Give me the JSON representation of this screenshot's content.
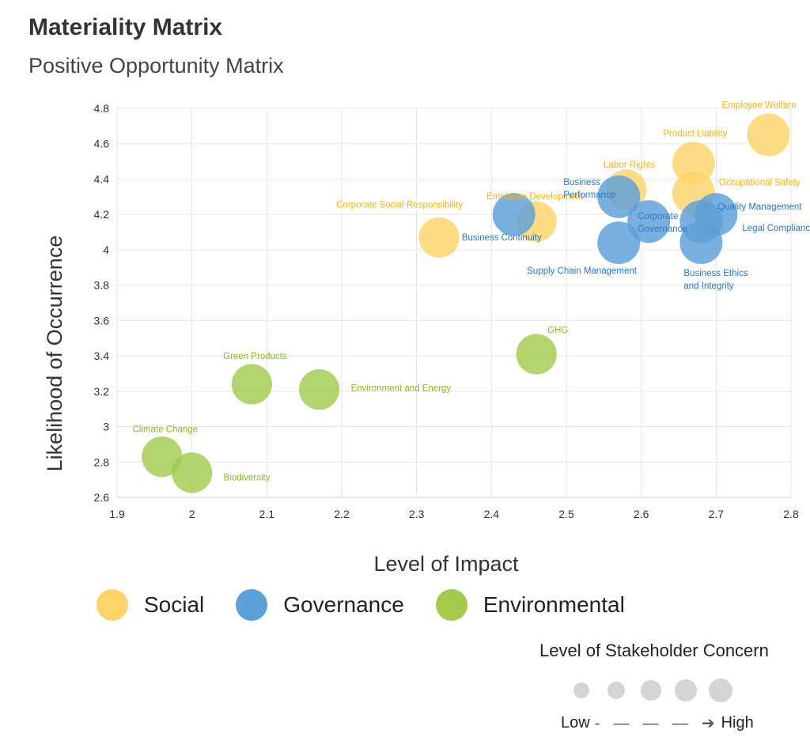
{
  "title": "Materiality Matrix",
  "subtitle": "Positive Opportunity Matrix",
  "chart_data": {
    "type": "scatter",
    "title": "Materiality Matrix",
    "subtitle": "Positive Opportunity Matrix",
    "xlabel": "Level of Impact",
    "ylabel": "Likelihood of Occurrence",
    "xlim": [
      1.9,
      2.8
    ],
    "ylim": [
      2.6,
      4.8
    ],
    "xticks": [
      "1.9",
      "2",
      "2.1",
      "2.2",
      "2.3",
      "2.4",
      "2.5",
      "2.6",
      "2.7",
      "2.8"
    ],
    "yticks": [
      "2.6",
      "2.8",
      "3",
      "3.2",
      "3.4",
      "3.6",
      "3.8",
      "4",
      "4.2",
      "4.4",
      "4.6",
      "4.8"
    ],
    "grid": true,
    "legend_position": "bottom",
    "series": [
      {
        "name": "Social",
        "color": "#fdd46a",
        "text_color": "#f2b517",
        "points": [
          {
            "label": "Employee Welfare",
            "x": 2.77,
            "y": 4.65,
            "concern": 5
          },
          {
            "label": "Product Liability",
            "x": 2.67,
            "y": 4.49,
            "concern": 5
          },
          {
            "label": "Labor Rights",
            "x": 2.58,
            "y": 4.34,
            "concern": 4
          },
          {
            "label": "Occupational Safety",
            "x": 2.67,
            "y": 4.32,
            "concern": 5
          },
          {
            "label": "Employee Development",
            "x": 2.46,
            "y": 4.16,
            "concern": 4
          },
          {
            "label": "Corporate Social Responsibility",
            "x": 2.33,
            "y": 4.07,
            "concern": 4
          }
        ]
      },
      {
        "name": "Governance",
        "color": "#5d9fd8",
        "text_color": "#2a78c2",
        "points": [
          {
            "label": "Business Performance",
            "x": 2.57,
            "y": 4.3,
            "concern": 5
          },
          {
            "label": "Business Continuity",
            "x": 2.43,
            "y": 4.2,
            "concern": 5
          },
          {
            "label": "Corporate Governance",
            "x": 2.61,
            "y": 4.16,
            "concern": 5
          },
          {
            "label": "Quality Management",
            "x": 2.7,
            "y": 4.2,
            "concern": 5
          },
          {
            "label": "Legal Compliance",
            "x": 2.68,
            "y": 4.16,
            "concern": 5
          },
          {
            "label": "Supply Chain Management",
            "x": 2.57,
            "y": 4.04,
            "concern": 5
          },
          {
            "label": "Business Ethics and Integrity",
            "x": 2.68,
            "y": 4.04,
            "concern": 5
          }
        ]
      },
      {
        "name": "Environmental",
        "color": "#a2cb4e",
        "text_color": "#8ab82b",
        "points": [
          {
            "label": "GHG",
            "x": 2.46,
            "y": 3.41,
            "concern": 4
          },
          {
            "label": "Green Products",
            "x": 2.08,
            "y": 3.24,
            "concern": 4
          },
          {
            "label": "Environment and Energy",
            "x": 2.17,
            "y": 3.21,
            "concern": 4
          },
          {
            "label": "Climate Change",
            "x": 1.96,
            "y": 2.83,
            "concern": 4
          },
          {
            "label": "Biodiversity",
            "x": 2.0,
            "y": 2.74,
            "concern": 4
          }
        ]
      }
    ],
    "size_legend": {
      "title": "Level of Stakeholder Concern",
      "low": "Low",
      "high": "High",
      "levels": [
        1,
        2,
        3,
        4,
        5
      ]
    }
  }
}
